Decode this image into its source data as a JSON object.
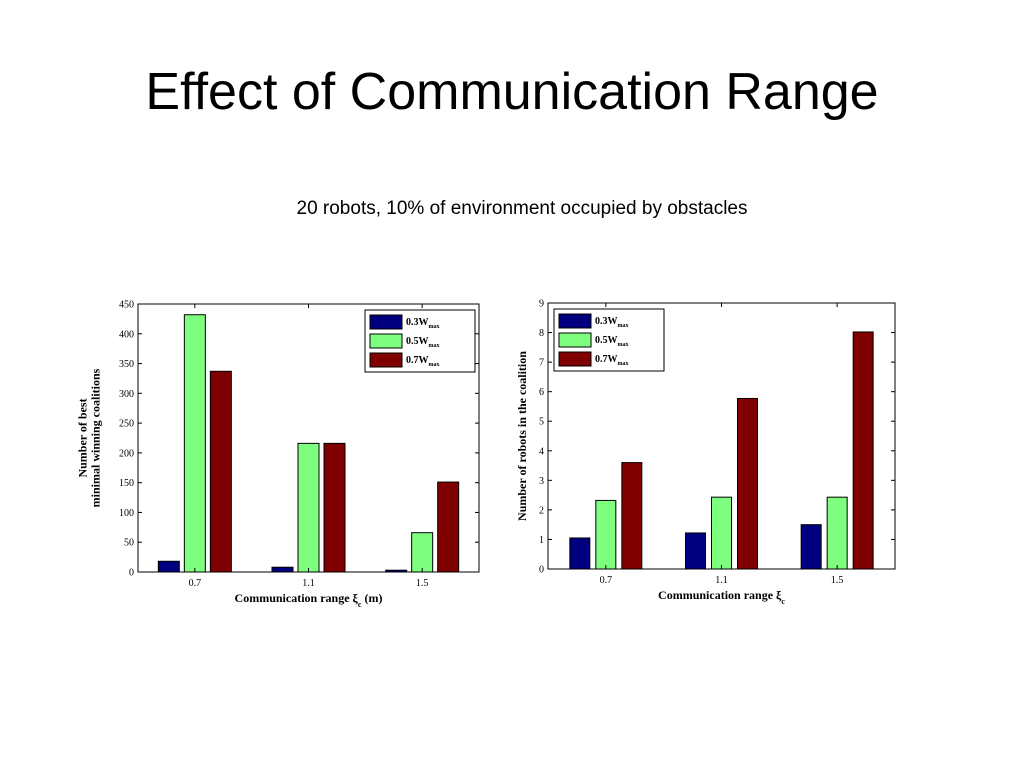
{
  "slide": {
    "title": "Effect of Communication Range",
    "subtitle": "20 robots, 10%  of environment occupied by obstacles"
  },
  "chart_data": [
    {
      "type": "bar",
      "categories": [
        "0.7",
        "1.1",
        "1.5"
      ],
      "series": [
        {
          "name": "0.3W",
          "name_sub": "max",
          "color": "#00007f",
          "values": [
            18,
            8,
            3
          ]
        },
        {
          "name": "0.5W",
          "name_sub": "max",
          "color": "#7fff7f",
          "values": [
            432,
            216,
            66
          ]
        },
        {
          "name": "0.7W",
          "name_sub": "max",
          "color": "#7f0000",
          "values": [
            337,
            216,
            151
          ]
        }
      ],
      "ylim": [
        0,
        450
      ],
      "yticks": [
        0,
        50,
        100,
        150,
        200,
        250,
        300,
        350,
        400,
        450
      ],
      "ylabel": [
        "Number of best",
        "minimal winning coalitions"
      ],
      "xlabel": {
        "text": "Communication range ξ",
        "sub": "c",
        "suffix": " (m)"
      },
      "legend": "top-right",
      "grid": false
    },
    {
      "type": "bar",
      "categories": [
        "0.7",
        "1.1",
        "1.5"
      ],
      "series": [
        {
          "name": "0.3W",
          "name_sub": "max",
          "color": "#00007f",
          "values": [
            1.05,
            1.22,
            1.5
          ]
        },
        {
          "name": "0.5W",
          "name_sub": "max",
          "color": "#7fff7f",
          "values": [
            2.32,
            2.43,
            2.43
          ]
        },
        {
          "name": "0.7W",
          "name_sub": "max",
          "color": "#7f0000",
          "values": [
            3.6,
            5.77,
            8.02
          ]
        }
      ],
      "ylim": [
        0,
        9
      ],
      "yticks": [
        0,
        1,
        2,
        3,
        4,
        5,
        6,
        7,
        8,
        9
      ],
      "ylabel": [
        "Number of robots in the coalition"
      ],
      "xlabel": {
        "text": "Communication range ξ",
        "sub": "c",
        "suffix": ""
      },
      "legend": "top-left",
      "grid": false
    }
  ]
}
